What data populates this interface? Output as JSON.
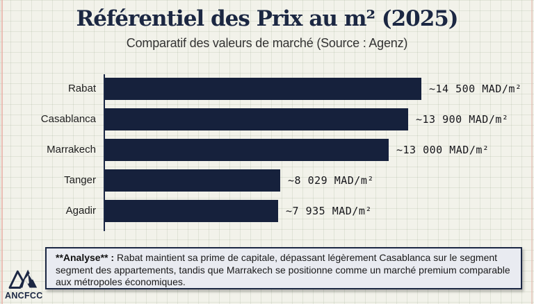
{
  "header": {
    "title": "Référentiel des Prix au m² (2025)",
    "subtitle": "Comparatif des valeurs de marché (Source : Agenz)"
  },
  "chart_data": {
    "type": "bar",
    "orientation": "horizontal",
    "title": "Référentiel des Prix au m² (2025)",
    "subtitle": "Comparatif des valeurs de marché (Source : Agenz)",
    "categories": [
      "Rabat",
      "Casablanca",
      "Marrakech",
      "Tanger",
      "Agadir"
    ],
    "values": [
      14500,
      13900,
      13000,
      8029,
      7935
    ],
    "value_labels": [
      "~14 500 MAD/m²",
      "~13 900 MAD/m²",
      "~13 000 MAD/m²",
      "~8 029 MAD/m²",
      "~7 935 MAD/m²"
    ],
    "unit": "MAD/m²",
    "xlim": [
      0,
      14500
    ],
    "grid": false,
    "legend": "none",
    "bar_color": "#16213c"
  },
  "analysis": {
    "label_bold": "**Analyse** :",
    "text": "Rabat maintient sa prime de capitale, dépassant légèrement Casablanca sur le segment segment des appartements, tandis que Marrakech se positionne comme un marché premium comparable aux métropoles économiques."
  },
  "footer": {
    "logo_text": "ANCFCC"
  },
  "colors": {
    "paper": "#f2f2ea",
    "accent_navy": "#1b2743",
    "bar": "#16213c",
    "analysis_bg": "#e9ebf1",
    "margin_line": "#e7aba1"
  }
}
